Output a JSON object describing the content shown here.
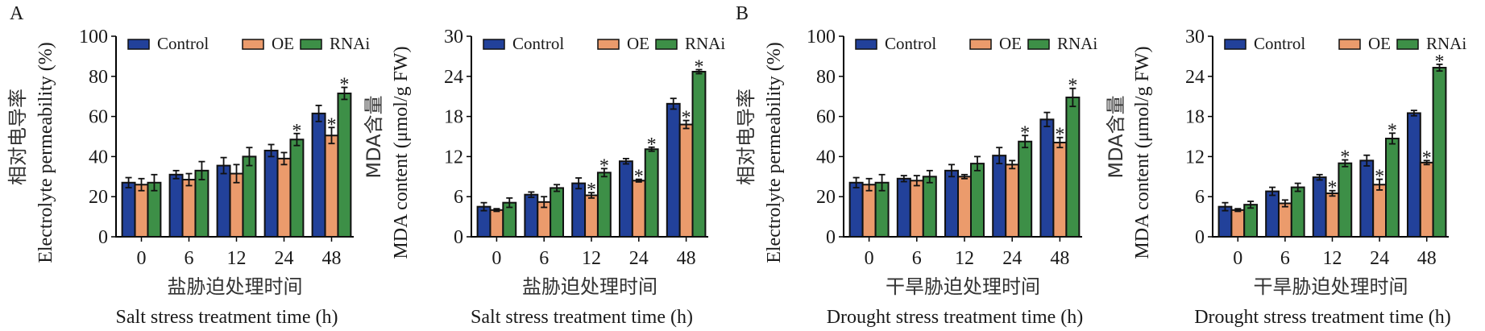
{
  "figure": {
    "panels": [
      {
        "label": "A"
      },
      {
        "label": "B"
      }
    ]
  },
  "legend": {
    "entries": [
      "Control",
      "OE",
      "RNAi"
    ],
    "colors": [
      "#22419a",
      "#eb9b6c",
      "#3d8f47"
    ],
    "placement": "top"
  },
  "chart_data": [
    {
      "type": "bar",
      "panel": "A",
      "title": "",
      "categories": [
        "0",
        "6",
        "12",
        "24",
        "48"
      ],
      "xlabel_cn": "盐胁迫处理时间",
      "xlabel": "Salt stress treatment time (h)",
      "ylabel_cn": "相对电导率",
      "ylabel": "Electrolyte permeability (%)",
      "ylim": [
        0,
        100
      ],
      "yticks": [
        0,
        20,
        40,
        60,
        80,
        100
      ],
      "series": [
        {
          "name": "Control",
          "values": [
            27,
            31,
            35.5,
            43,
            61.5
          ],
          "errors": [
            2.5,
            2,
            4,
            3,
            4
          ],
          "significant": [
            false,
            false,
            false,
            false,
            false
          ]
        },
        {
          "name": "OE",
          "values": [
            26,
            28.5,
            31.5,
            39,
            50.5
          ],
          "errors": [
            3,
            3,
            4.5,
            3,
            4
          ],
          "significant": [
            false,
            false,
            false,
            false,
            true
          ]
        },
        {
          "name": "RNAi",
          "values": [
            27,
            33,
            40,
            48.5,
            71.5
          ],
          "errors": [
            4,
            4.5,
            4.5,
            3,
            3
          ],
          "significant": [
            false,
            false,
            false,
            true,
            true
          ]
        }
      ]
    },
    {
      "type": "bar",
      "panel": "A",
      "title": "",
      "categories": [
        "0",
        "6",
        "12",
        "24",
        "48"
      ],
      "xlabel_cn": "盐胁迫处理时间",
      "xlabel": "Salt stress treatment time (h)",
      "ylabel_cn": "MDA含量",
      "ylabel": "MDA content (μmol/g FW)",
      "ylim": [
        0,
        30
      ],
      "yticks": [
        0,
        6,
        12,
        18,
        24,
        30
      ],
      "series": [
        {
          "name": "Control",
          "values": [
            4.5,
            6.3,
            8.0,
            11.3,
            19.9
          ],
          "errors": [
            0.6,
            0.4,
            0.8,
            0.4,
            0.8
          ],
          "significant": [
            false,
            false,
            false,
            false,
            false
          ]
        },
        {
          "name": "OE",
          "values": [
            4.0,
            5.2,
            6.2,
            8.4,
            16.8
          ],
          "errors": [
            0.2,
            0.8,
            0.4,
            0.2,
            0.6
          ],
          "significant": [
            false,
            false,
            true,
            true,
            true
          ]
        },
        {
          "name": "RNAi",
          "values": [
            5.1,
            7.3,
            9.6,
            13.1,
            24.7
          ],
          "errors": [
            0.7,
            0.5,
            0.6,
            0.3,
            0.3
          ],
          "significant": [
            false,
            false,
            true,
            true,
            true
          ]
        }
      ]
    },
    {
      "type": "bar",
      "panel": "B",
      "title": "",
      "categories": [
        "0",
        "6",
        "12",
        "24",
        "48"
      ],
      "xlabel_cn": "干旱胁迫处理时间",
      "xlabel": "Drought stress treatment time (h)",
      "ylabel_cn": "相对电导率",
      "ylabel": "Electrolyte permeability (%)",
      "ylim": [
        0,
        100
      ],
      "yticks": [
        0,
        20,
        40,
        60,
        80,
        100
      ],
      "series": [
        {
          "name": "Control",
          "values": [
            27,
            29,
            33,
            40.5,
            58.5
          ],
          "errors": [
            2.5,
            1.5,
            3,
            4,
            3.5
          ],
          "significant": [
            false,
            false,
            false,
            false,
            false
          ]
        },
        {
          "name": "OE",
          "values": [
            26,
            28,
            30,
            36,
            47
          ],
          "errors": [
            3,
            2.5,
            1,
            2,
            2.5
          ],
          "significant": [
            false,
            false,
            false,
            false,
            true
          ]
        },
        {
          "name": "RNAi",
          "values": [
            27,
            30,
            36.5,
            47.5,
            69.5
          ],
          "errors": [
            4,
            3,
            3.5,
            3,
            4.5
          ],
          "significant": [
            false,
            false,
            false,
            true,
            true
          ]
        }
      ]
    },
    {
      "type": "bar",
      "panel": "B",
      "title": "",
      "categories": [
        "0",
        "6",
        "12",
        "24",
        "48"
      ],
      "xlabel_cn": "干旱胁迫处理时间",
      "xlabel": "Drought stress treatment time (h)",
      "ylabel_cn": "MDA含量",
      "ylabel": "MDA content (μmol/g FW)",
      "ylim": [
        0,
        30
      ],
      "yticks": [
        0,
        6,
        12,
        18,
        24,
        30
      ],
      "series": [
        {
          "name": "Control",
          "values": [
            4.5,
            6.8,
            8.9,
            11.4,
            18.5
          ],
          "errors": [
            0.6,
            0.6,
            0.4,
            0.8,
            0.4
          ],
          "significant": [
            false,
            false,
            false,
            false,
            false
          ]
        },
        {
          "name": "OE",
          "values": [
            4.0,
            5.0,
            6.5,
            7.8,
            11.1
          ],
          "errors": [
            0.2,
            0.5,
            0.4,
            0.8,
            0.3
          ],
          "significant": [
            false,
            false,
            true,
            true,
            true
          ]
        },
        {
          "name": "RNAi",
          "values": [
            4.8,
            7.4,
            11.0,
            14.7,
            25.3
          ],
          "errors": [
            0.5,
            0.6,
            0.5,
            0.8,
            0.5
          ],
          "significant": [
            false,
            false,
            true,
            true,
            true
          ]
        }
      ]
    }
  ]
}
